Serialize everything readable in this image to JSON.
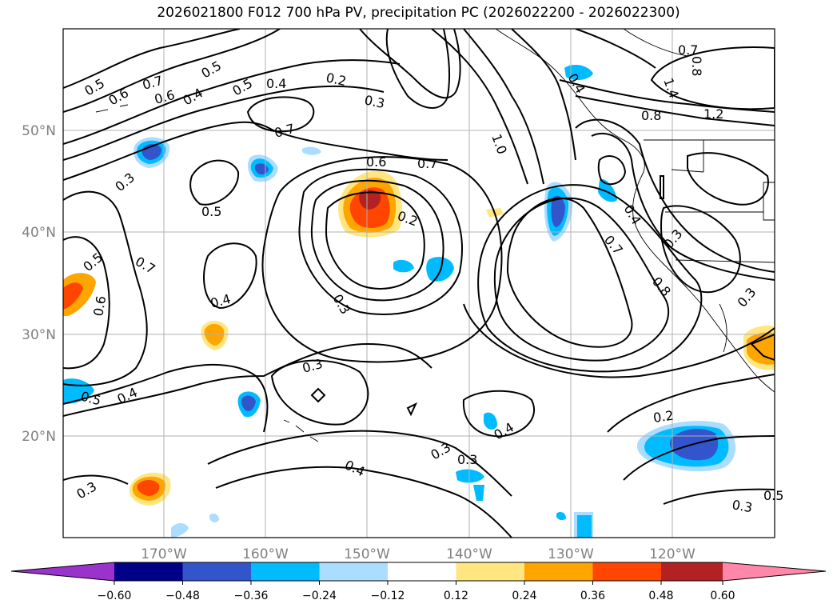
{
  "title": "2026021800 F012 700 hPa PV, precipitation PC (2026022200 - 2026022300)",
  "map": {
    "lon_labels": [
      "170°W",
      "160°W",
      "150°W",
      "140°W",
      "130°W",
      "120°W"
    ],
    "lat_labels": [
      "50°N",
      "40°N",
      "30°N",
      "20°N"
    ]
  },
  "contour_labels": [
    "0.5",
    "0.6",
    "0.7",
    "0.6",
    "0.5",
    "0.4",
    "0.5",
    "0.4",
    "0.2",
    "0.3",
    "0.7",
    "0.6",
    "0.7",
    "0.4",
    "1.0",
    "0.7",
    "0.8",
    "1.4",
    "0.8",
    "1.2",
    "0.3",
    "0.5",
    "0.2",
    "0.4",
    "0.7",
    "0.3",
    "0.8",
    "0.5",
    "0.6",
    "0.7",
    "0.4",
    "0.3",
    "0.3",
    "0.5",
    "0.4",
    "0.3",
    "0.3",
    "0.4",
    "0.4",
    "0.2",
    "0.3",
    "0.3",
    "0.3",
    "0.5"
  ],
  "colorbar": {
    "ticks": [
      "−0.60",
      "−0.48",
      "−0.36",
      "−0.24",
      "−0.12",
      "0.12",
      "0.24",
      "0.36",
      "0.48",
      "0.60"
    ],
    "colors": [
      "#9933cc",
      "#000088",
      "#3355cc",
      "#00bbff",
      "#aaddff",
      "#ffffff",
      "#ffe680",
      "#ffa500",
      "#ff4500",
      "#b22222",
      "#ff88aa"
    ]
  }
}
